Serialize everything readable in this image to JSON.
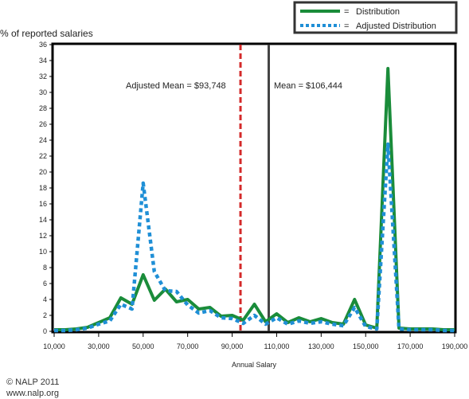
{
  "chart_data": {
    "type": "line",
    "ylabel": "% of reported salaries",
    "xlabel": "Annual Salary",
    "xlim": [
      10000,
      190000
    ],
    "ylim": [
      0,
      36
    ],
    "x_ticks": [
      "10,000",
      "30,000",
      "50,000",
      "70,000",
      "90,000",
      "110,000",
      "130,000",
      "150,000",
      "170,000",
      "190,000"
    ],
    "y_ticks": [
      "0",
      "2",
      "4",
      "6",
      "8",
      "10",
      "12",
      "14",
      "16",
      "18",
      "20",
      "22",
      "24",
      "26",
      "28",
      "30",
      "32",
      "34",
      "36"
    ],
    "legend_position": "top-right",
    "series": [
      {
        "name": "Distribution",
        "style": "solid",
        "color": "#1a8c3a",
        "x": [
          10000,
          15000,
          20000,
          25000,
          30000,
          35000,
          40000,
          45000,
          50000,
          55000,
          60000,
          65000,
          70000,
          75000,
          80000,
          85000,
          90000,
          95000,
          100000,
          105000,
          110000,
          115000,
          120000,
          125000,
          130000,
          135000,
          140000,
          145000,
          150000,
          155000,
          160000,
          165000,
          170000,
          175000,
          180000,
          185000,
          190000
        ],
        "values": [
          0.2,
          0.2,
          0.3,
          0.5,
          1.1,
          1.7,
          4.2,
          3.4,
          7.1,
          3.9,
          5.3,
          3.7,
          4.0,
          2.8,
          3.0,
          1.9,
          2.0,
          1.4,
          3.4,
          1.2,
          2.2,
          1.1,
          1.7,
          1.2,
          1.6,
          1.1,
          0.9,
          4.0,
          0.8,
          0.4,
          33.0,
          0.4,
          0.3,
          0.3,
          0.3,
          0.2,
          0.2
        ]
      },
      {
        "name": "Adjusted Distribution",
        "style": "dotted",
        "color": "#1f8fd6",
        "x": [
          10000,
          15000,
          20000,
          25000,
          30000,
          35000,
          40000,
          45000,
          50000,
          55000,
          60000,
          65000,
          70000,
          75000,
          80000,
          85000,
          90000,
          95000,
          100000,
          105000,
          110000,
          115000,
          120000,
          125000,
          130000,
          135000,
          140000,
          145000,
          150000,
          155000,
          160000,
          165000,
          170000,
          175000,
          180000,
          185000,
          190000
        ],
        "values": [
          0.1,
          0.1,
          0.2,
          0.4,
          0.9,
          1.3,
          3.4,
          2.8,
          18.6,
          7.5,
          5.1,
          5.0,
          3.3,
          2.3,
          2.6,
          1.7,
          1.6,
          1.0,
          2.0,
          0.9,
          1.7,
          0.9,
          1.3,
          1.0,
          1.2,
          0.9,
          0.7,
          3.0,
          0.6,
          0.3,
          23.5,
          0.3,
          0.2,
          0.2,
          0.2,
          0.1,
          0.1
        ]
      }
    ],
    "reference_lines": [
      {
        "label": "Adjusted Mean = $93,748",
        "x": 93748,
        "color": "#d42a2a",
        "style": "dashed"
      },
      {
        "label": "Mean = $106,444",
        "x": 106444,
        "color": "#444444",
        "style": "solid"
      }
    ]
  },
  "footer": {
    "copyright": "© NALP 2011",
    "url": "www.nalp.org"
  }
}
